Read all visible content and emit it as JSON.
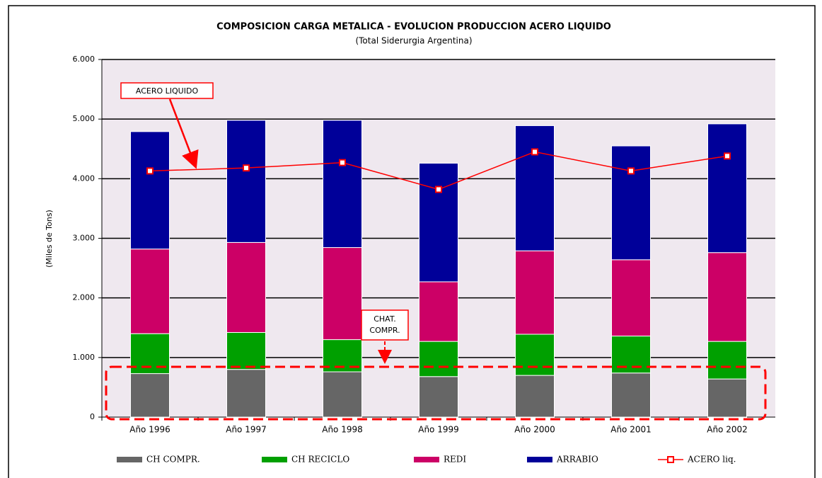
{
  "chart_data": {
    "type": "bar",
    "stacked": true,
    "title": "COMPOSICION CARGA METALICA - EVOLUCION PRODUCCION ACERO LIQUIDO",
    "subtitle": "(Total Siderurgia Argentina)",
    "y_label": "(Miles de Tons)",
    "categories": [
      "Año 1996",
      "Año 1997",
      "Año 1998",
      "Año 1999",
      "Año 2000",
      "Año 2001",
      "Año 2002"
    ],
    "series": [
      {
        "name": "CH COMPR.",
        "type": "bar",
        "color": "#666666",
        "values": [
          730,
          800,
          760,
          680,
          700,
          740,
          640
        ]
      },
      {
        "name": "CH RECICLO",
        "type": "bar",
        "color": "#00a000",
        "values": [
          670,
          620,
          540,
          590,
          690,
          620,
          630
        ]
      },
      {
        "name": "REDI",
        "type": "bar",
        "color": "#cc0066",
        "values": [
          1420,
          1510,
          1545,
          1000,
          1400,
          1280,
          1490
        ]
      },
      {
        "name": "ARRABIO",
        "type": "bar",
        "color": "#000099",
        "values": [
          1970,
          2050,
          2135,
          1990,
          2100,
          1910,
          2160
        ]
      },
      {
        "name": "ACERO liq.",
        "type": "line",
        "color": "#ff0000",
        "values": [
          4130,
          4180,
          4270,
          3820,
          4450,
          4130,
          4380
        ]
      }
    ],
    "ylim": [
      0,
      6000
    ],
    "yticks": [
      0,
      {
        "value": 1000,
        "label": "1.000"
      },
      {
        "value": 2000,
        "label": "2.000"
      },
      {
        "value": 3000,
        "label": "3.000"
      },
      {
        "value": 4000,
        "label": "4.000"
      },
      {
        "value": 5000,
        "label": "5.000"
      },
      {
        "value": 6000,
        "label": "6.000"
      }
    ],
    "grid": true,
    "legend": "bottom",
    "annotations": [
      {
        "lines": [
          "ACERO LIQUIDO"
        ]
      },
      {
        "lines": [
          "CHAT.",
          "COMPR."
        ]
      }
    ]
  }
}
